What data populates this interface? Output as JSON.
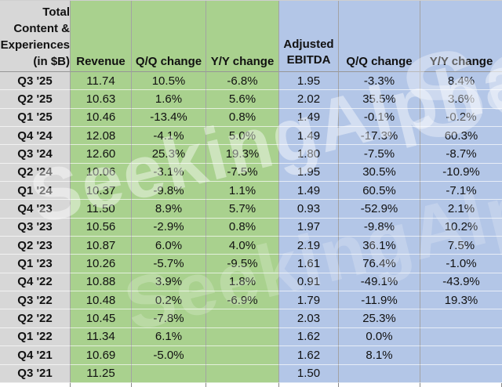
{
  "watermark": {
    "text": "SeekingAlpha"
  },
  "colors": {
    "label_column": "#d7d7d7",
    "revenue_section": "#a9d18e",
    "ebitda_section": "#b3c6e7"
  },
  "table": {
    "corner_header_lines": [
      "Total",
      "Content &",
      "Experiences",
      "(in $B)"
    ],
    "revenue_headers": [
      "Revenue",
      "Q/Q change",
      "Y/Y change"
    ],
    "ebitda_headers": [
      "Adjusted EBITDA",
      "Q/Q change",
      "Y/Y change"
    ],
    "rows": [
      {
        "label": "Q3 '25",
        "revenue": "11.74",
        "rev_qq": "10.5%",
        "rev_yy": "-6.8%",
        "ebitda": "1.95",
        "ebt_qq": "-3.3%",
        "ebt_yy": "8.4%"
      },
      {
        "label": "Q2 '25",
        "revenue": "10.63",
        "rev_qq": "1.6%",
        "rev_yy": "5.6%",
        "ebitda": "2.02",
        "ebt_qq": "35.5%",
        "ebt_yy": "3.6%"
      },
      {
        "label": "Q1 '25",
        "revenue": "10.46",
        "rev_qq": "-13.4%",
        "rev_yy": "0.8%",
        "ebitda": "1.49",
        "ebt_qq": "-0.1%",
        "ebt_yy": "-0.2%"
      },
      {
        "label": "Q4 '24",
        "revenue": "12.08",
        "rev_qq": "-4.1%",
        "rev_yy": "5.0%",
        "ebitda": "1.49",
        "ebt_qq": "-17.3%",
        "ebt_yy": "60.3%"
      },
      {
        "label": "Q3 '24",
        "revenue": "12.60",
        "rev_qq": "25.3%",
        "rev_yy": "19.3%",
        "ebitda": "1.80",
        "ebt_qq": "-7.5%",
        "ebt_yy": "-8.7%"
      },
      {
        "label": "Q2 '24",
        "revenue": "10.06",
        "rev_qq": "-3.1%",
        "rev_yy": "-7.5%",
        "ebitda": "1.95",
        "ebt_qq": "30.5%",
        "ebt_yy": "-10.9%"
      },
      {
        "label": "Q1 '24",
        "revenue": "10.37",
        "rev_qq": "-9.8%",
        "rev_yy": "1.1%",
        "ebitda": "1.49",
        "ebt_qq": "60.5%",
        "ebt_yy": "-7.1%"
      },
      {
        "label": "Q4 '23",
        "revenue": "11.50",
        "rev_qq": "8.9%",
        "rev_yy": "5.7%",
        "ebitda": "0.93",
        "ebt_qq": "-52.9%",
        "ebt_yy": "2.1%"
      },
      {
        "label": "Q3 '23",
        "revenue": "10.56",
        "rev_qq": "-2.9%",
        "rev_yy": "0.8%",
        "ebitda": "1.97",
        "ebt_qq": "-9.8%",
        "ebt_yy": "10.2%"
      },
      {
        "label": "Q2 '23",
        "revenue": "10.87",
        "rev_qq": "6.0%",
        "rev_yy": "4.0%",
        "ebitda": "2.19",
        "ebt_qq": "36.1%",
        "ebt_yy": "7.5%"
      },
      {
        "label": "Q1 '23",
        "revenue": "10.26",
        "rev_qq": "-5.7%",
        "rev_yy": "-9.5%",
        "ebitda": "1.61",
        "ebt_qq": "76.4%",
        "ebt_yy": "-1.0%"
      },
      {
        "label": "Q4 '22",
        "revenue": "10.88",
        "rev_qq": "3.9%",
        "rev_yy": "1.8%",
        "ebitda": "0.91",
        "ebt_qq": "-49.1%",
        "ebt_yy": "-43.9%"
      },
      {
        "label": "Q3 '22",
        "revenue": "10.48",
        "rev_qq": "0.2%",
        "rev_yy": "-6.9%",
        "ebitda": "1.79",
        "ebt_qq": "-11.9%",
        "ebt_yy": "19.3%"
      },
      {
        "label": "Q2 '22",
        "revenue": "10.45",
        "rev_qq": "-7.8%",
        "rev_yy": "",
        "ebitda": "2.03",
        "ebt_qq": "25.3%",
        "ebt_yy": ""
      },
      {
        "label": "Q1 '22",
        "revenue": "11.34",
        "rev_qq": "6.1%",
        "rev_yy": "",
        "ebitda": "1.62",
        "ebt_qq": "0.0%",
        "ebt_yy": ""
      },
      {
        "label": "Q4 '21",
        "revenue": "10.69",
        "rev_qq": "-5.0%",
        "rev_yy": "",
        "ebitda": "1.62",
        "ebt_qq": "8.1%",
        "ebt_yy": ""
      },
      {
        "label": "Q3 '21",
        "revenue": "11.25",
        "rev_qq": "",
        "rev_yy": "",
        "ebitda": "1.50",
        "ebt_qq": "",
        "ebt_yy": ""
      }
    ]
  }
}
